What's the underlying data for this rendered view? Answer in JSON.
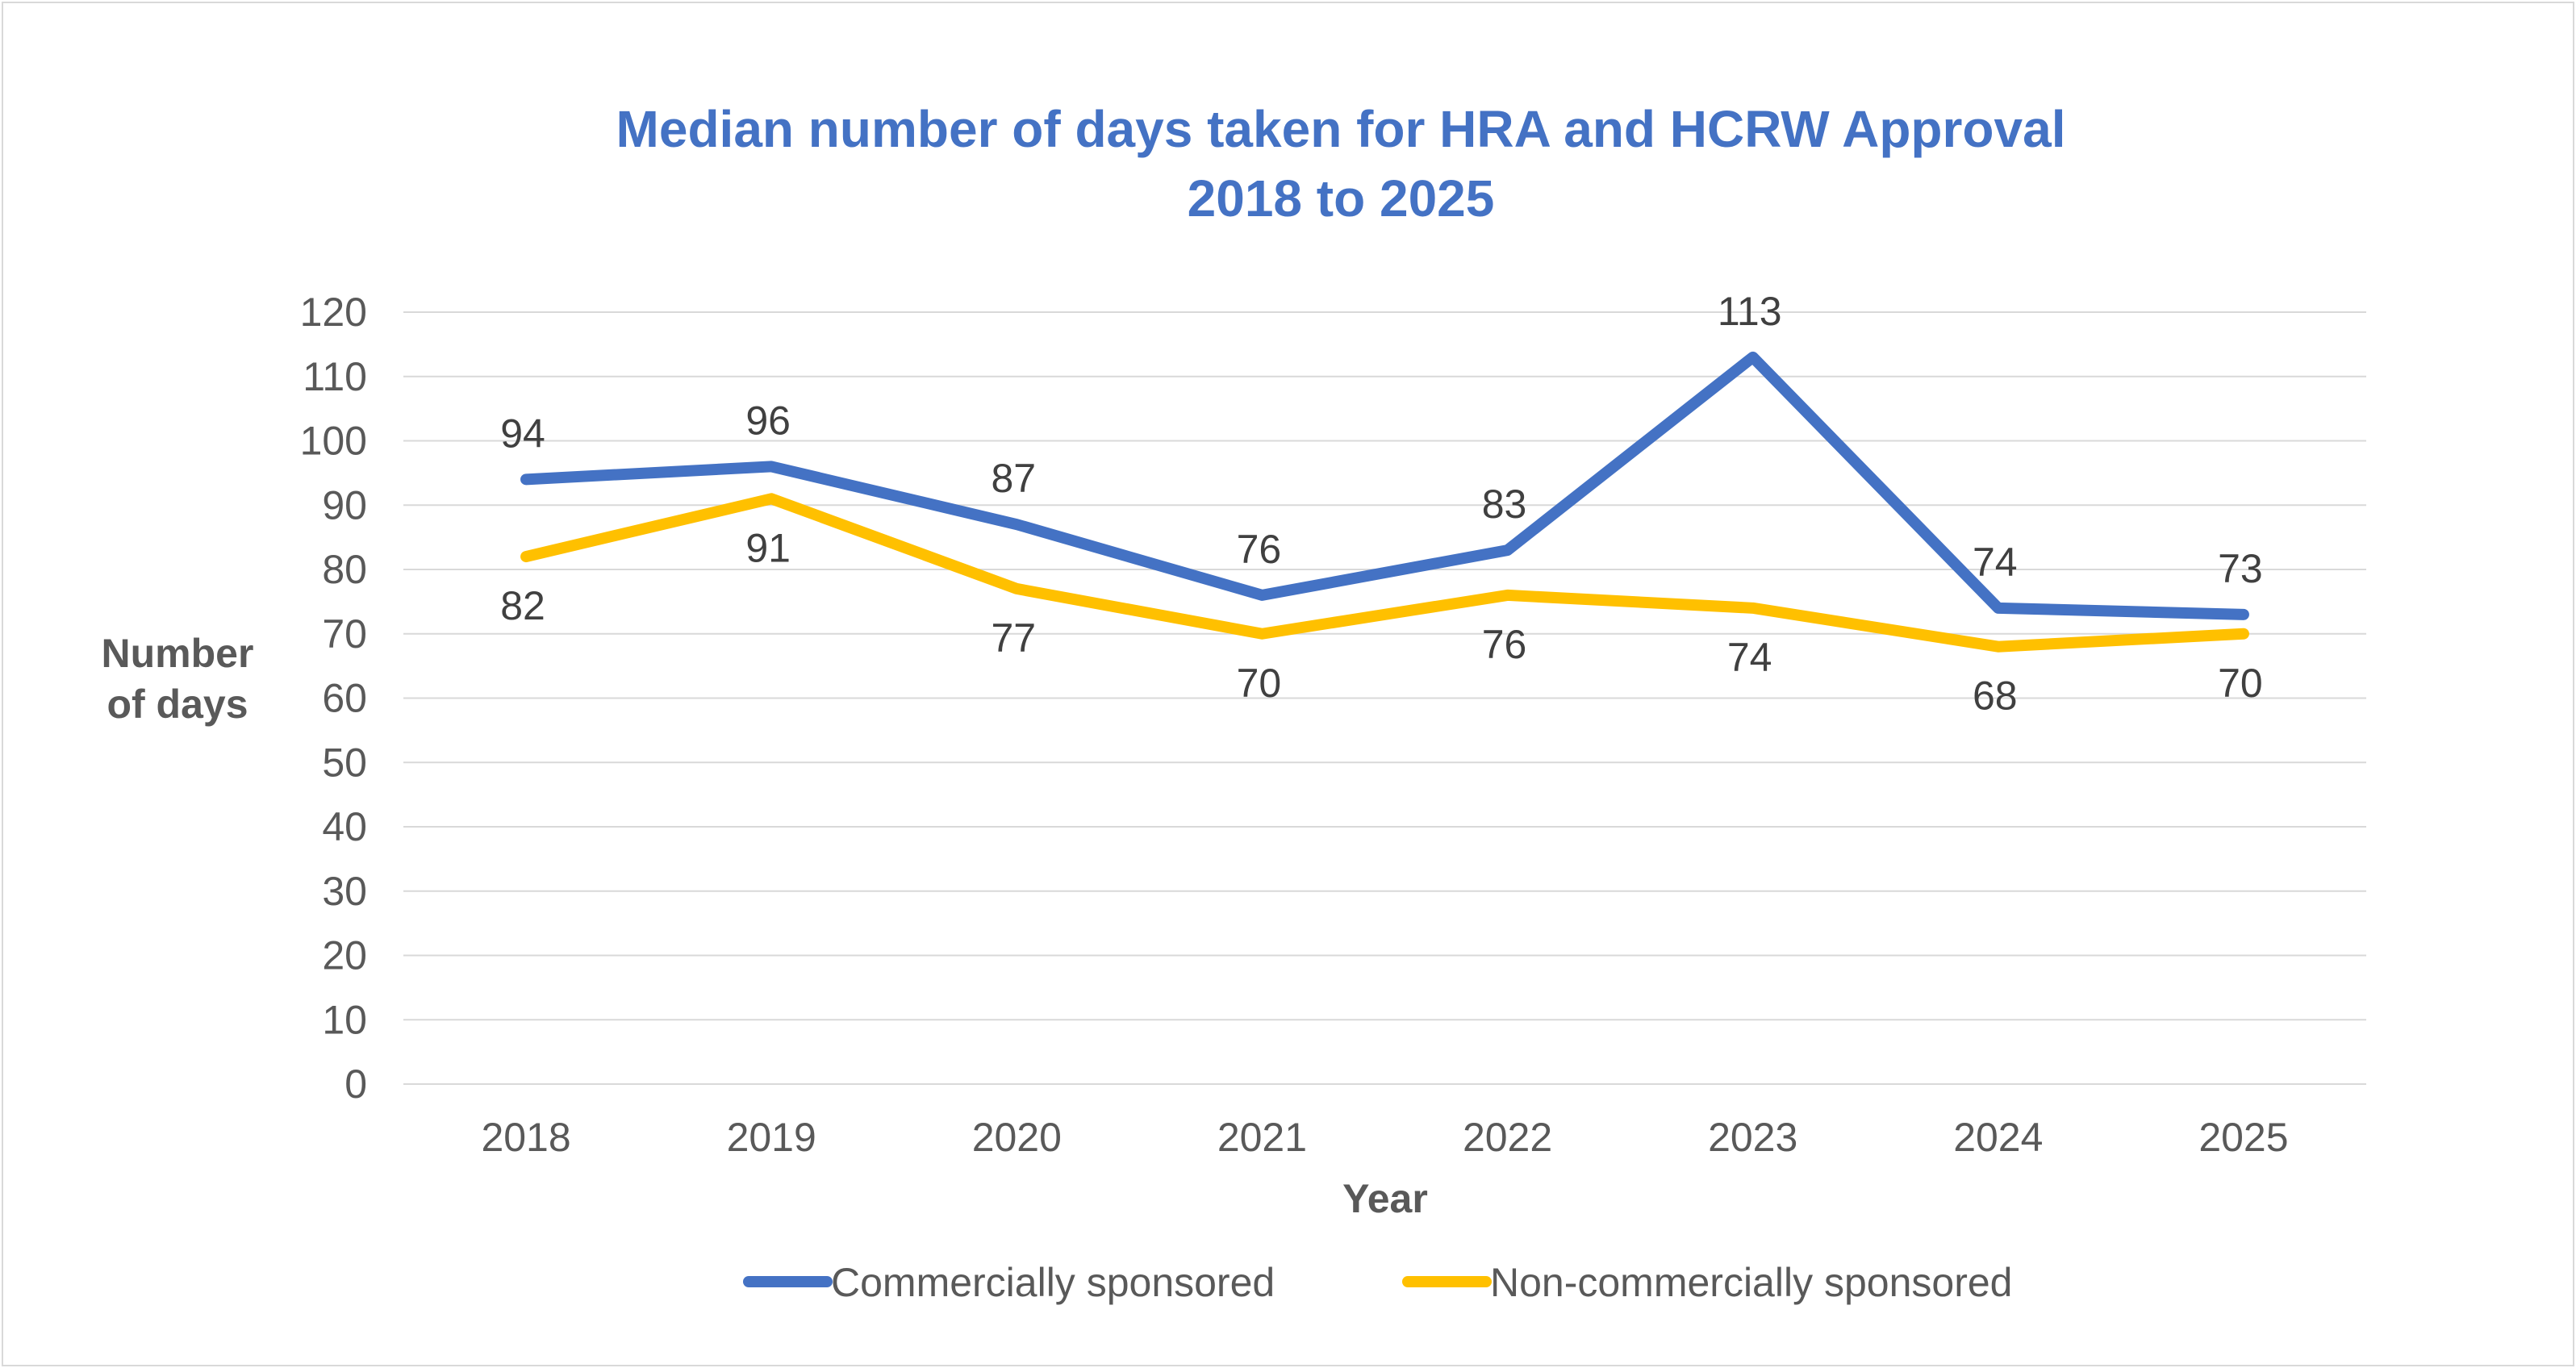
{
  "chart_data": {
    "type": "line",
    "title": "Median number of days taken for HRA and HCRW Approval",
    "subtitle": "2018 to 2025",
    "xlabel": "Year",
    "ylabel_line1": "Number",
    "ylabel_line2": "of days",
    "categories": [
      "2018",
      "2019",
      "2020",
      "2021",
      "2022",
      "2023",
      "2024",
      "2025"
    ],
    "ylim": [
      0,
      120
    ],
    "yticks": [
      0,
      10,
      20,
      30,
      40,
      50,
      60,
      70,
      80,
      90,
      100,
      110,
      120
    ],
    "grid": true,
    "legend_position": "bottom",
    "series": [
      {
        "name": "Commercially sponsored",
        "color": "#4472c4",
        "values": [
          94,
          96,
          87,
          76,
          83,
          113,
          74,
          73
        ],
        "label_side": "above"
      },
      {
        "name": "Non-commercially sponsored",
        "color": "#ffc000",
        "values": [
          82,
          91,
          77,
          70,
          76,
          74,
          68,
          70
        ],
        "label_side": "below"
      }
    ]
  }
}
